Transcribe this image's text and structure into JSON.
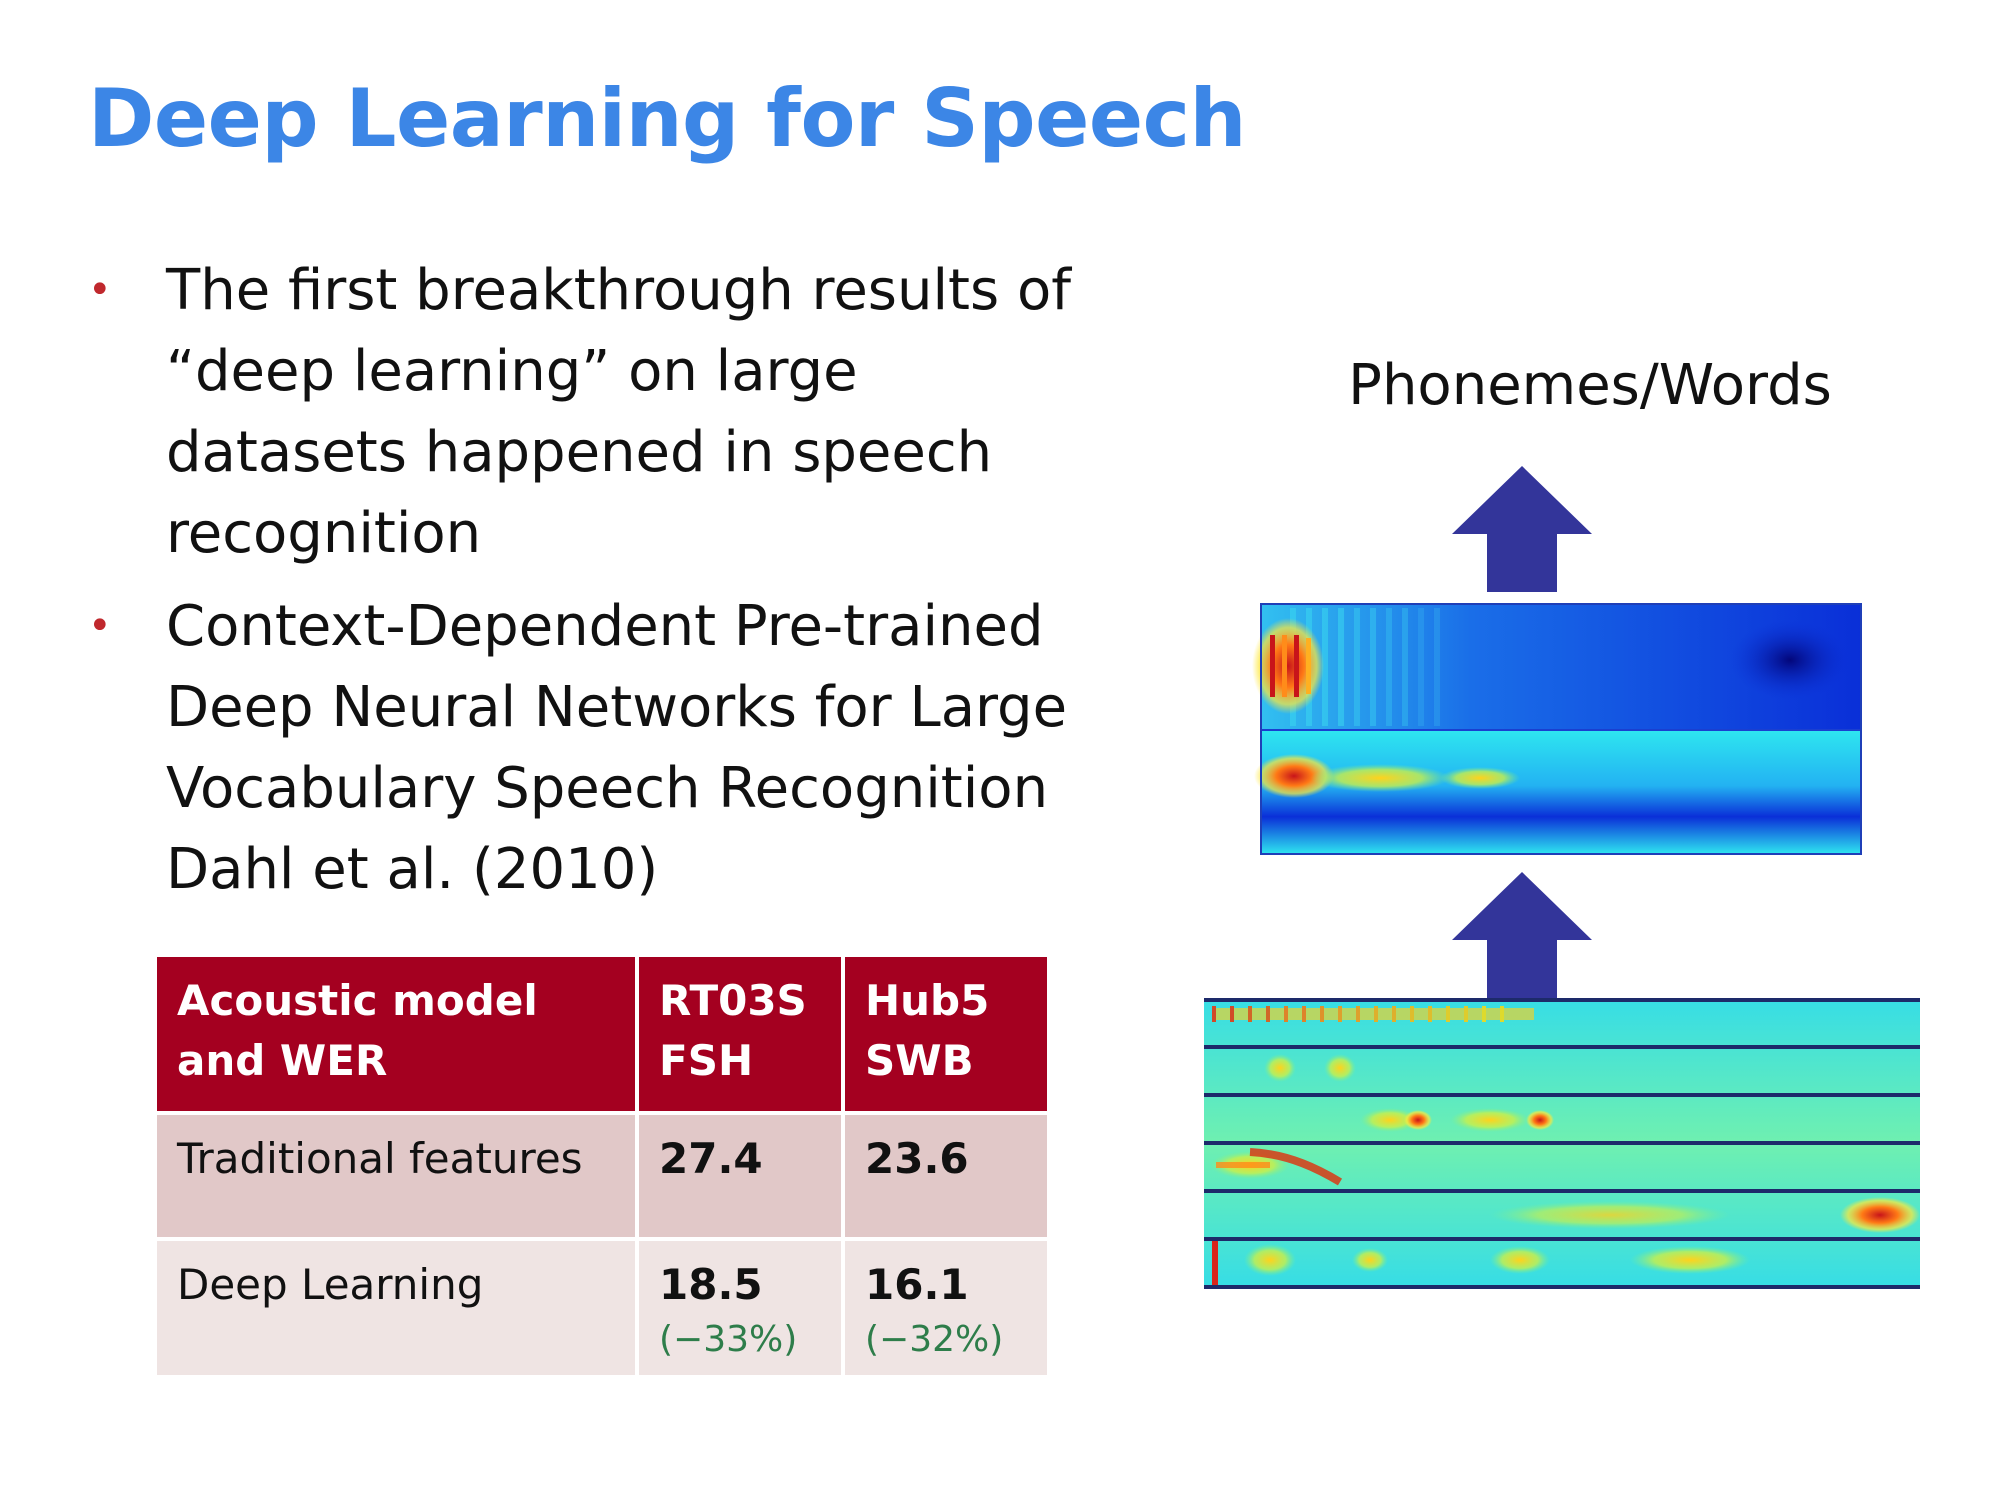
{
  "slide": {
    "title": "Deep Learning for Speech"
  },
  "bullets": [
    {
      "lines": [
        "The first breakthrough results of",
        "“deep learning” on large",
        "datasets happened in speech",
        "recognition"
      ]
    },
    {
      "lines": [
        "Context-Dependent  Pre-trained",
        "Deep Neural Networks for Large",
        "Vocabulary Speech  Recognition",
        "Dahl et al. (2010)"
      ]
    }
  ],
  "table": {
    "headers": [
      [
        "Acoustic model",
        "and WER"
      ],
      [
        "RT03S",
        "FSH"
      ],
      [
        "Hub5",
        "SWB"
      ]
    ],
    "rows": [
      {
        "label": "Traditional features",
        "values": [
          "27.4",
          "23.6"
        ],
        "deltas": [
          "",
          ""
        ]
      },
      {
        "label": "Deep Learning",
        "values": [
          "18.5",
          "16.1"
        ],
        "deltas": [
          "(−33%)",
          "(−32%)"
        ]
      }
    ]
  },
  "diagram": {
    "output_label": "Phonemes/Words",
    "colors": {
      "arrow": "#33359a",
      "feature_background": "#27d9e8",
      "hidden_background": "#0a2fd8",
      "band_line": "#1d2a6a"
    }
  }
}
